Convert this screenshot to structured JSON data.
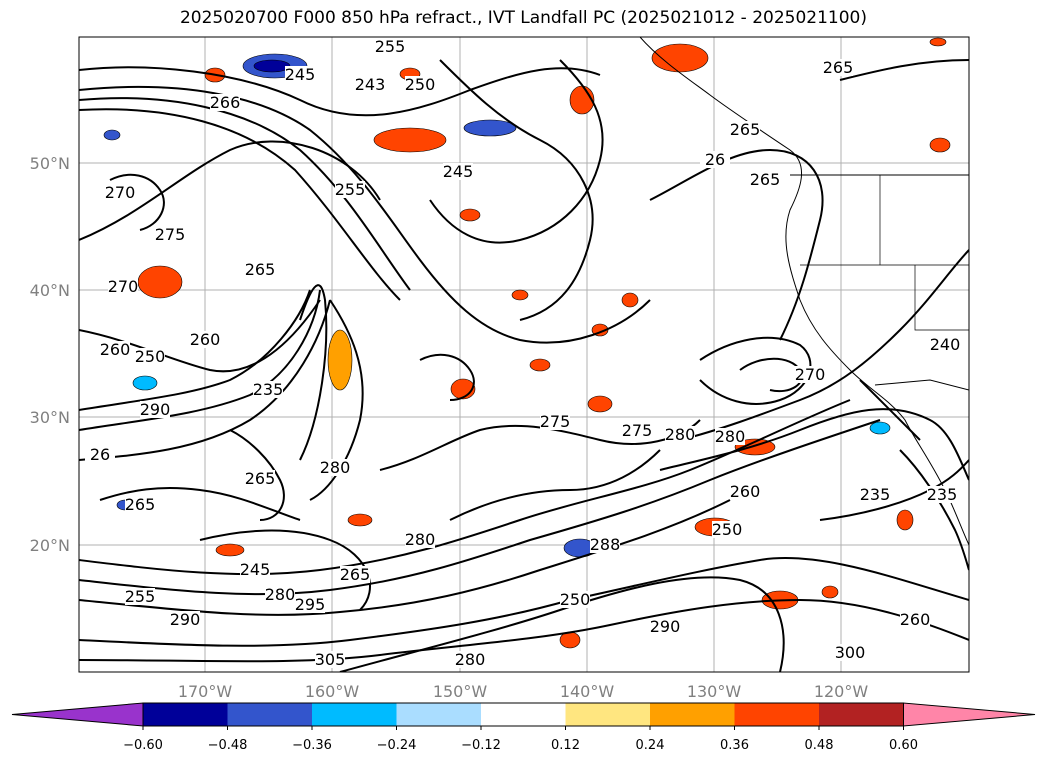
{
  "title": "2025020700 F000 850 hPa refract., IVT Landfall PC (2025021012 - 2025021100)",
  "axes": {
    "lat_labels": [
      "50°N",
      "40°N",
      "30°N",
      "20°N"
    ],
    "lon_labels": [
      "170°W",
      "160°W",
      "150°W",
      "140°W",
      "130°W",
      "120°W"
    ]
  },
  "contour_labels": [
    "255",
    "245",
    "243",
    "250",
    "265",
    "265",
    "266",
    "245",
    "255",
    "26",
    "265",
    "270",
    "275",
    "270",
    "265",
    "260",
    "260",
    "250",
    "290",
    "235",
    "265",
    "26",
    "265",
    "280",
    "275",
    "275",
    "280",
    "280",
    "260",
    "250",
    "235",
    "235",
    "265",
    "280",
    "288",
    "270",
    "295",
    "280",
    "245",
    "250",
    "260",
    "290",
    "305",
    "280",
    "290",
    "300",
    "255",
    "240"
  ],
  "colorbar": {
    "ticks": [
      "−0.60",
      "−0.48",
      "−0.36",
      "−0.24",
      "−0.12",
      "0.12",
      "0.24",
      "0.36",
      "0.48",
      "0.60"
    ],
    "colors": [
      "#9933cc",
      "#000099",
      "#3355cc",
      "#00bbff",
      "#aaddff",
      "#ffffff",
      "#ffe680",
      "#ffa000",
      "#ff4400",
      "#b22222",
      "#ff85a8"
    ]
  }
}
